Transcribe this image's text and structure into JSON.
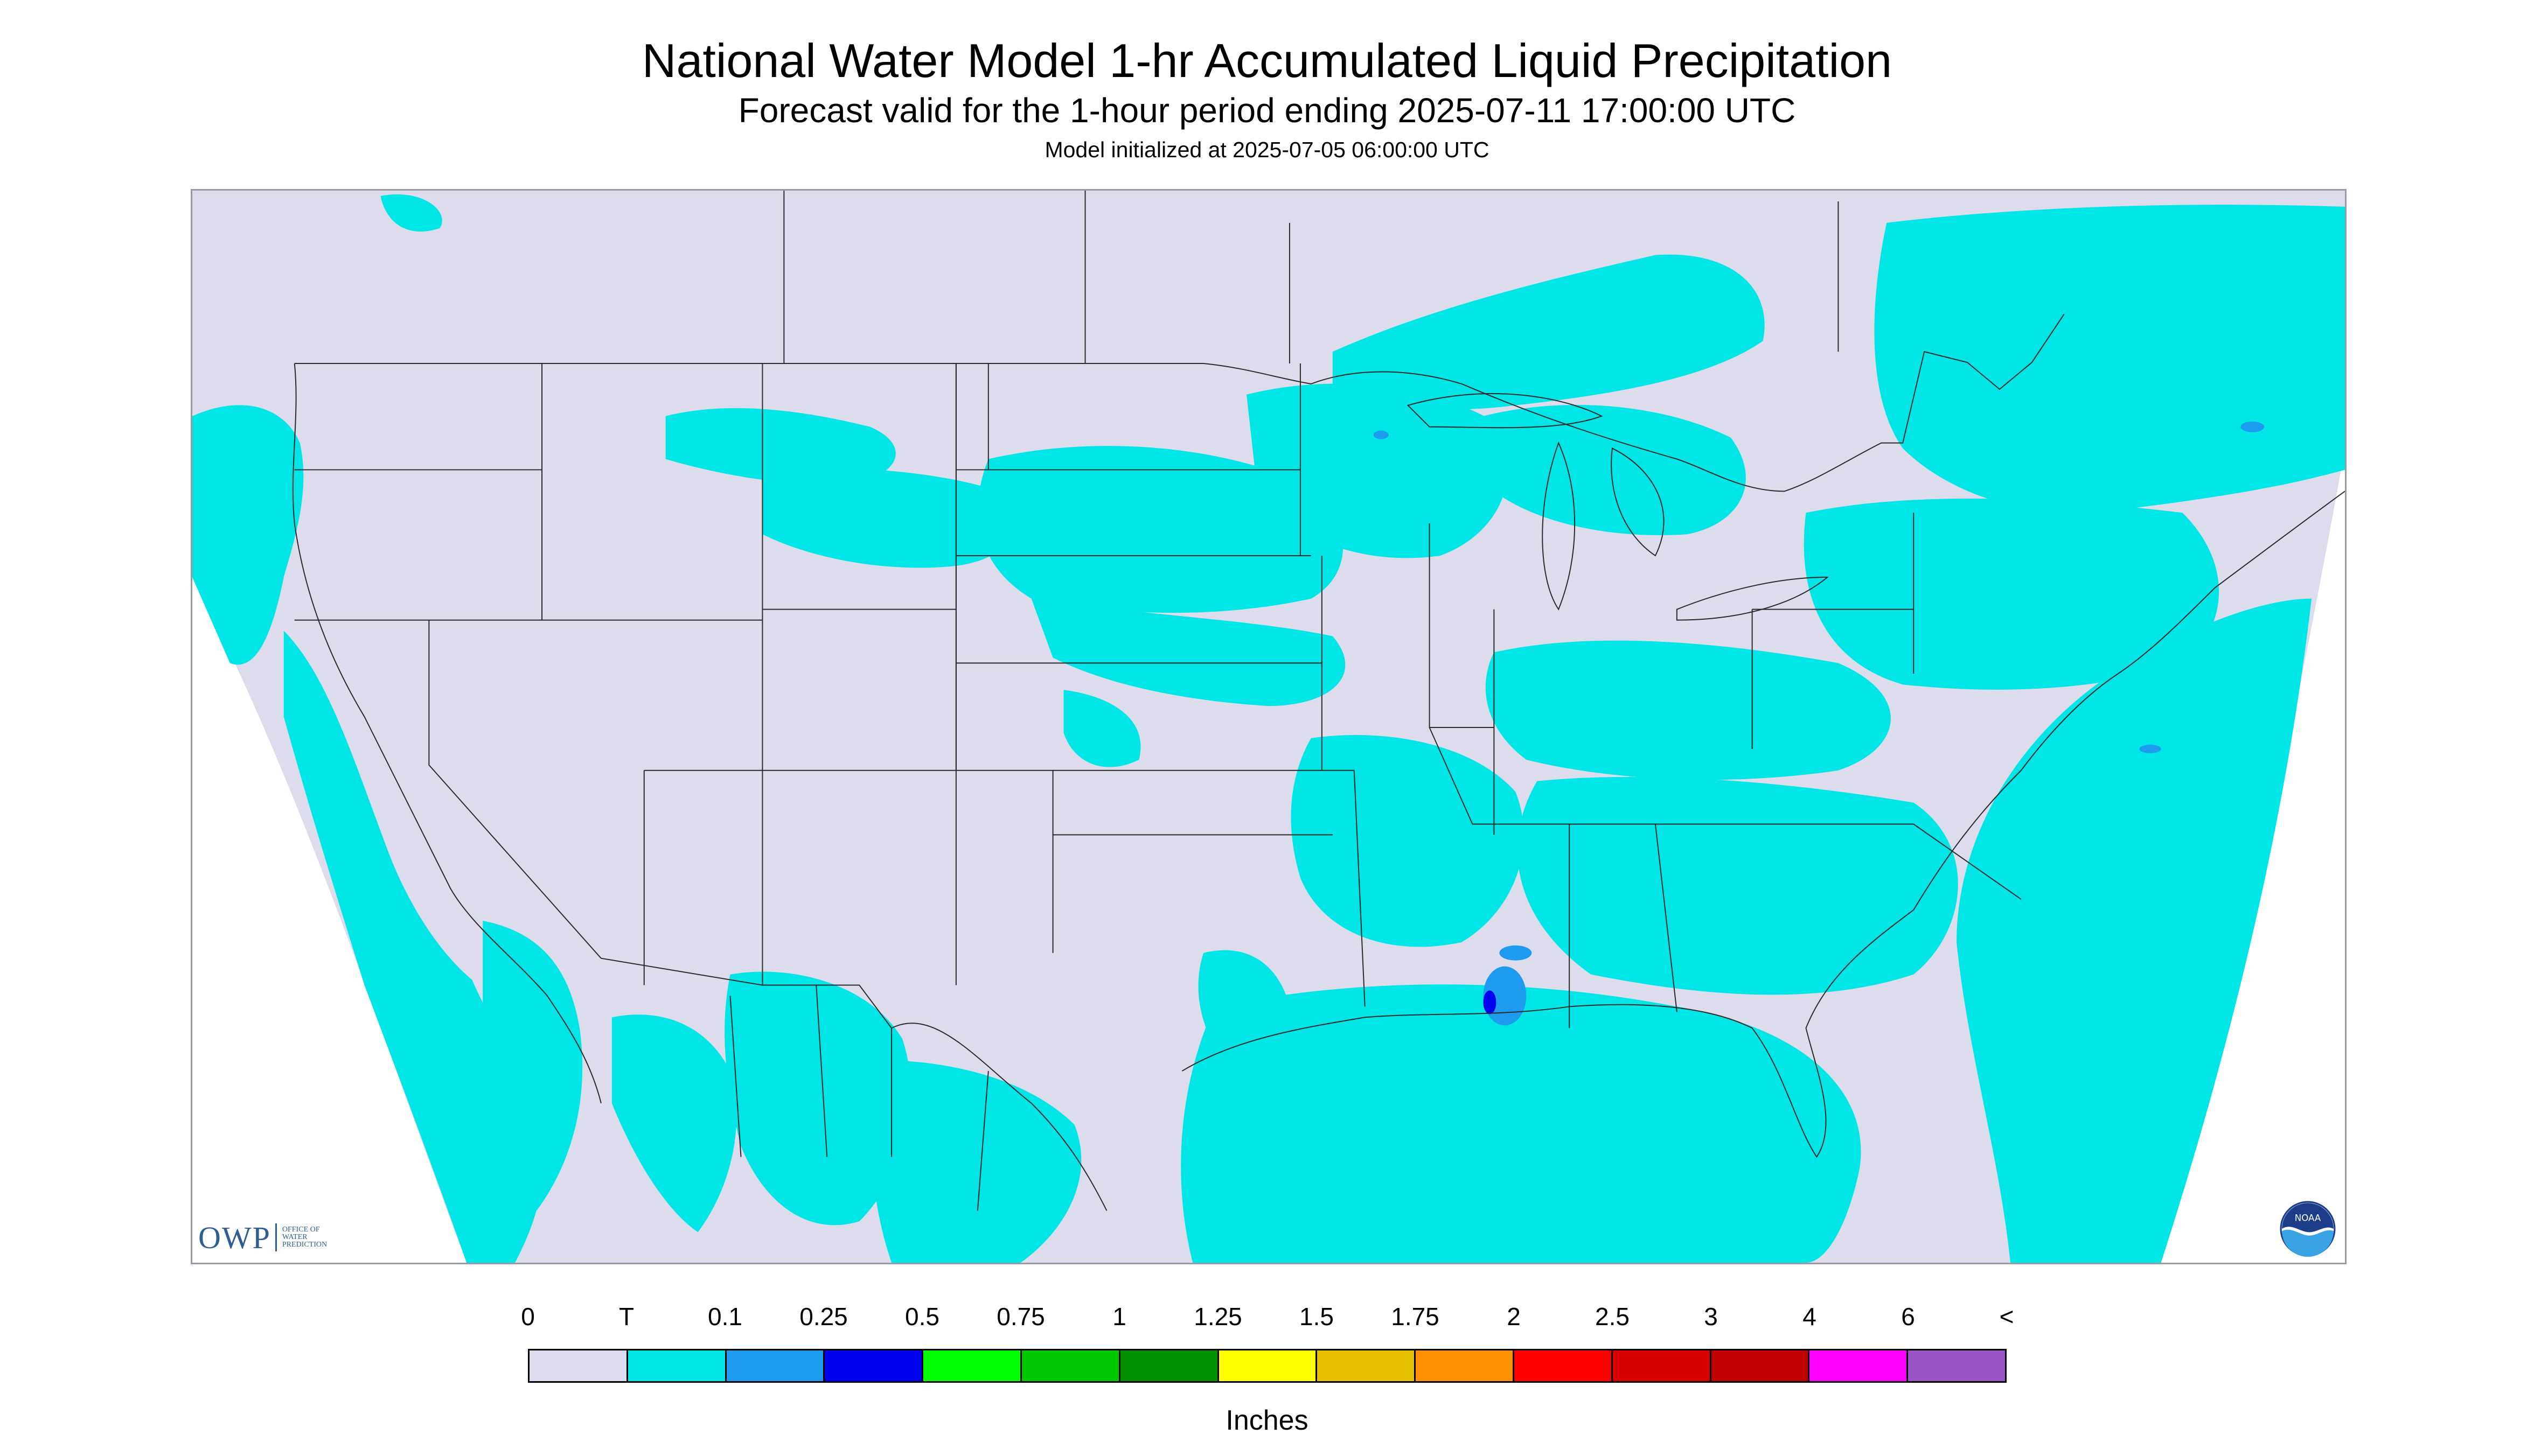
{
  "header": {
    "title": "National Water Model 1-hr Accumulated Liquid Precipitation",
    "subtitle": "Forecast valid for the 1-hour period ending 2025-07-11 17:00:00 UTC",
    "init_line": "Model initialized at 2025-07-05 06:00:00 UTC"
  },
  "map": {
    "region": "CONUS",
    "background_color": "#dcdcec",
    "precip_color_trace": "#00e6e6",
    "precip_color_light": "#1e9bef",
    "precip_color_moderate": "#0000f0",
    "boundary_color": "#2a2a2a"
  },
  "logos": {
    "owp": {
      "abbr": "OWP",
      "lines": [
        "OFFICE OF",
        "WATER",
        "PREDICTION"
      ]
    },
    "noaa": {
      "text": "NOAA",
      "icon": "noaa-logo-icon"
    }
  },
  "legend": {
    "labels": [
      "0",
      "T",
      "0.1",
      "0.25",
      "0.5",
      "0.75",
      "1",
      "1.25",
      "1.5",
      "1.75",
      "2",
      "2.5",
      "3",
      "4",
      "6",
      "<"
    ],
    "colors": [
      "#dcdcec",
      "#00e6e6",
      "#1e9bef",
      "#0000f0",
      "#00ff00",
      "#00c800",
      "#009000",
      "#ffff00",
      "#e6c000",
      "#ff9000",
      "#ff0000",
      "#d60000",
      "#c00000",
      "#ff00ff",
      "#9955c8"
    ],
    "units": "Inches"
  }
}
